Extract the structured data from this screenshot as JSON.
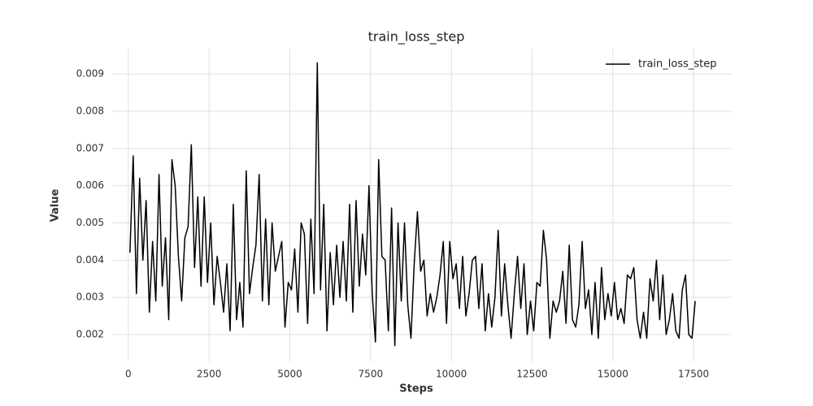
{
  "chart_data": {
    "type": "line",
    "title": "train_loss_step",
    "xlabel": "Steps",
    "ylabel": "Value",
    "legend": "upper right",
    "grid": true,
    "xlim": [
      -500,
      18680
    ],
    "ylim": [
      0.00128,
      0.00968
    ],
    "xticks": [
      0,
      2500,
      5000,
      7500,
      10000,
      12500,
      15000,
      17500
    ],
    "yticks": [
      0.002,
      0.003,
      0.004,
      0.005,
      0.006,
      0.007,
      0.008,
      0.009
    ],
    "x": [
      50,
      150,
      250,
      350,
      450,
      550,
      650,
      750,
      850,
      950,
      1050,
      1150,
      1250,
      1350,
      1450,
      1550,
      1650,
      1750,
      1850,
      1950,
      2050,
      2150,
      2250,
      2350,
      2450,
      2550,
      2650,
      2750,
      2850,
      2950,
      3050,
      3150,
      3250,
      3350,
      3450,
      3550,
      3650,
      3750,
      3850,
      3950,
      4050,
      4150,
      4250,
      4350,
      4450,
      4550,
      4650,
      4750,
      4850,
      4950,
      5050,
      5150,
      5250,
      5350,
      5450,
      5550,
      5650,
      5750,
      5850,
      5950,
      6050,
      6150,
      6250,
      6350,
      6450,
      6550,
      6650,
      6750,
      6850,
      6950,
      7050,
      7150,
      7250,
      7350,
      7450,
      7550,
      7650,
      7750,
      7850,
      7950,
      8050,
      8150,
      8250,
      8350,
      8450,
      8550,
      8650,
      8750,
      8850,
      8950,
      9050,
      9150,
      9250,
      9350,
      9450,
      9550,
      9650,
      9750,
      9850,
      9950,
      10050,
      10150,
      10250,
      10350,
      10450,
      10550,
      10650,
      10750,
      10850,
      10950,
      11050,
      11150,
      11250,
      11350,
      11450,
      11550,
      11650,
      11750,
      11850,
      11950,
      12050,
      12150,
      12250,
      12350,
      12450,
      12550,
      12650,
      12750,
      12850,
      12950,
      13050,
      13150,
      13250,
      13350,
      13450,
      13550,
      13650,
      13750,
      13850,
      13950,
      14050,
      14150,
      14250,
      14350,
      14450,
      14550,
      14650,
      14750,
      14850,
      14950,
      15050,
      15150,
      15250,
      15350,
      15450,
      15550,
      15650,
      15750,
      15850,
      15950,
      16050,
      16150,
      16250,
      16350,
      16450,
      16550,
      16650,
      16750,
      16850,
      16950,
      17050,
      17150,
      17250,
      17350,
      17450,
      17550
    ],
    "series": [
      {
        "name": "train_loss_step",
        "color": "#000000",
        "values": [
          0.0042,
          0.0068,
          0.0031,
          0.0062,
          0.004,
          0.0056,
          0.0026,
          0.0045,
          0.0029,
          0.0063,
          0.0033,
          0.0046,
          0.0024,
          0.0067,
          0.006,
          0.0041,
          0.0029,
          0.0046,
          0.0049,
          0.0071,
          0.0038,
          0.0057,
          0.0033,
          0.0057,
          0.0034,
          0.005,
          0.0028,
          0.0041,
          0.0034,
          0.0026,
          0.0039,
          0.0021,
          0.0055,
          0.0024,
          0.0034,
          0.0022,
          0.0064,
          0.0031,
          0.0038,
          0.0044,
          0.0063,
          0.0029,
          0.0051,
          0.0028,
          0.005,
          0.0037,
          0.0041,
          0.0045,
          0.0022,
          0.0034,
          0.0032,
          0.0043,
          0.0026,
          0.005,
          0.0047,
          0.0023,
          0.0051,
          0.0031,
          0.0093,
          0.0032,
          0.0055,
          0.0021,
          0.0042,
          0.0028,
          0.0044,
          0.003,
          0.0045,
          0.0029,
          0.0055,
          0.0026,
          0.0056,
          0.0033,
          0.0047,
          0.0036,
          0.006,
          0.0031,
          0.0018,
          0.0067,
          0.0041,
          0.004,
          0.0021,
          0.0054,
          0.0017,
          0.005,
          0.0029,
          0.005,
          0.0028,
          0.0019,
          0.0039,
          0.0053,
          0.0037,
          0.004,
          0.0025,
          0.0031,
          0.0026,
          0.003,
          0.0036,
          0.0045,
          0.0023,
          0.0045,
          0.0035,
          0.0039,
          0.0027,
          0.0041,
          0.0025,
          0.0031,
          0.004,
          0.0041,
          0.0027,
          0.0039,
          0.0021,
          0.0031,
          0.0022,
          0.003,
          0.0048,
          0.0025,
          0.0039,
          0.0028,
          0.0019,
          0.0031,
          0.0041,
          0.0027,
          0.0039,
          0.002,
          0.0029,
          0.0021,
          0.0034,
          0.0033,
          0.0048,
          0.004,
          0.0019,
          0.0029,
          0.0026,
          0.0029,
          0.0037,
          0.0023,
          0.0044,
          0.0024,
          0.0022,
          0.0028,
          0.0045,
          0.0027,
          0.0032,
          0.002,
          0.0034,
          0.0019,
          0.0038,
          0.0024,
          0.0031,
          0.0025,
          0.0034,
          0.0024,
          0.0027,
          0.0023,
          0.0036,
          0.0035,
          0.0038,
          0.0024,
          0.0019,
          0.0026,
          0.0019,
          0.0035,
          0.0029,
          0.004,
          0.0024,
          0.0036,
          0.002,
          0.0024,
          0.0031,
          0.0021,
          0.0019,
          0.0032,
          0.0036,
          0.002,
          0.0019,
          0.0029
        ]
      }
    ]
  }
}
